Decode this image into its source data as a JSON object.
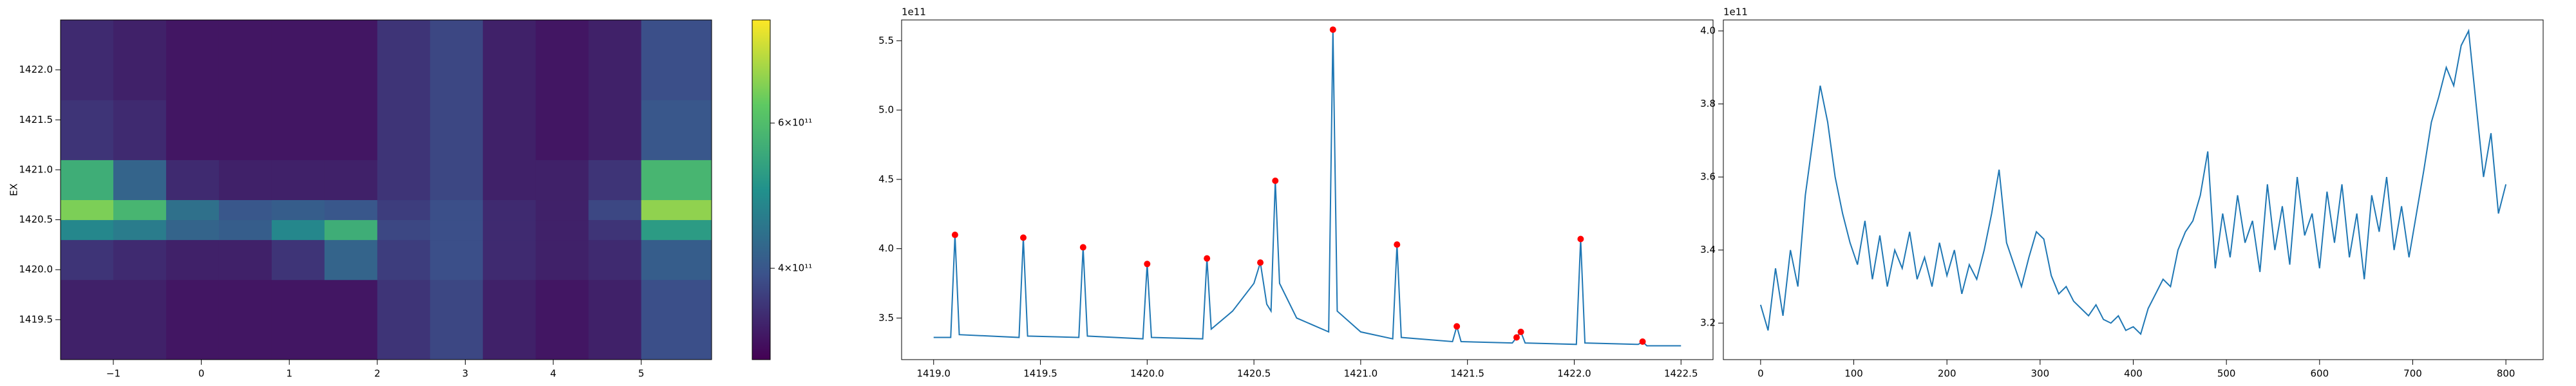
{
  "chart_data": [
    {
      "type": "heatmap",
      "ylabel": "EX",
      "xbins": [
        -1.6,
        -1,
        -0.4,
        0.2,
        0.8,
        1.4,
        2.0,
        2.6,
        3.2,
        3.8,
        4.4,
        5.0,
        5.8
      ],
      "ybins": [
        1419.1,
        1419.5,
        1419.9,
        1420.3,
        1420.5,
        1420.7,
        1421.1,
        1421.7,
        1422.5
      ],
      "z": [
        [
          340000000000.0,
          340000000000.0,
          330000000000.0,
          330000000000.0,
          330000000000.0,
          330000000000.0,
          360000000000.0,
          380000000000.0,
          340000000000.0,
          330000000000.0,
          340000000000.0,
          390000000000.0
        ],
        [
          340000000000.0,
          340000000000.0,
          330000000000.0,
          330000000000.0,
          330000000000.0,
          330000000000.0,
          360000000000.0,
          380000000000.0,
          340000000000.0,
          330000000000.0,
          340000000000.0,
          390000000000.0
        ],
        [
          360000000000.0,
          350000000000.0,
          340000000000.0,
          340000000000.0,
          360000000000.0,
          420000000000.0,
          370000000000.0,
          390000000000.0,
          350000000000.0,
          340000000000.0,
          350000000000.0,
          410000000000.0
        ],
        [
          480000000000.0,
          460000000000.0,
          420000000000.0,
          410000000000.0,
          480000000000.0,
          560000000000.0,
          380000000000.0,
          390000000000.0,
          350000000000.0,
          340000000000.0,
          360000000000.0,
          520000000000.0
        ],
        [
          660000000000.0,
          580000000000.0,
          440000000000.0,
          400000000000.0,
          410000000000.0,
          400000000000.0,
          370000000000.0,
          390000000000.0,
          350000000000.0,
          340000000000.0,
          380000000000.0,
          680000000000.0
        ],
        [
          560000000000.0,
          420000000000.0,
          350000000000.0,
          340000000000.0,
          340000000000.0,
          340000000000.0,
          360000000000.0,
          380000000000.0,
          340000000000.0,
          340000000000.0,
          360000000000.0,
          580000000000.0
        ],
        [
          360000000000.0,
          350000000000.0,
          330000000000.0,
          330000000000.0,
          330000000000.0,
          330000000000.0,
          360000000000.0,
          380000000000.0,
          340000000000.0,
          330000000000.0,
          340000000000.0,
          400000000000.0
        ],
        [
          350000000000.0,
          340000000000.0,
          330000000000.0,
          330000000000.0,
          330000000000.0,
          330000000000.0,
          360000000000.0,
          380000000000.0,
          340000000000.0,
          330000000000.0,
          340000000000.0,
          390000000000.0
        ]
      ],
      "xlim": [
        -1.6,
        5.8
      ],
      "ylim": [
        1419.1,
        1422.5
      ],
      "xticks": [
        {
          "value": -1,
          "label": "−1"
        },
        0,
        1,
        2,
        3,
        4,
        5
      ],
      "yticks": [
        1419.5,
        {
          "value": 1420,
          "label": "1420.0"
        },
        1420.5,
        {
          "value": 1421,
          "label": "1421.0"
        },
        1421.5,
        {
          "value": 1422,
          "label": "1422.0"
        }
      ],
      "colorbar": {
        "scale": "log",
        "lim": [
          310000000000.0,
          800000000000.0
        ],
        "ticks": [
          {
            "value": 400000000000.0,
            "label": "4×10¹¹"
          },
          {
            "value": 600000000000.0,
            "label": "6×10¹¹"
          }
        ]
      }
    },
    {
      "type": "line",
      "offset_text": "1e11",
      "series": [
        {
          "color": "#1f77b4",
          "x": [
            1419.0,
            1419.08,
            1419.1,
            1419.12,
            1419.4,
            1419.42,
            1419.44,
            1419.68,
            1419.7,
            1419.72,
            1419.98,
            1420.0,
            1420.02,
            1420.26,
            1420.28,
            1420.3,
            1420.4,
            1420.5,
            1420.53,
            1420.56,
            1420.58,
            1420.6,
            1420.62,
            1420.7,
            1420.85,
            1420.87,
            1420.89,
            1421.0,
            1421.15,
            1421.17,
            1421.19,
            1421.43,
            1421.45,
            1421.47,
            1421.71,
            1421.73,
            1421.75,
            1421.77,
            1422.01,
            1422.03,
            1422.05,
            1422.3,
            1422.32,
            1422.34,
            1422.5
          ],
          "values": [
            3.36,
            3.36,
            4.1,
            3.38,
            3.36,
            4.08,
            3.37,
            3.36,
            4.01,
            3.37,
            3.35,
            3.89,
            3.36,
            3.35,
            3.93,
            3.42,
            3.55,
            3.75,
            3.9,
            3.6,
            3.55,
            4.49,
            3.75,
            3.5,
            3.4,
            5.58,
            3.55,
            3.4,
            3.35,
            4.03,
            3.36,
            3.33,
            3.44,
            3.33,
            3.32,
            3.36,
            3.4,
            3.32,
            3.31,
            4.07,
            3.32,
            3.31,
            3.33,
            3.3,
            3.3
          ]
        }
      ],
      "peaks": {
        "color": "#ff0000",
        "x": [
          1419.1,
          1419.42,
          1419.7,
          1420.0,
          1420.28,
          1420.53,
          1420.6,
          1420.87,
          1421.17,
          1421.45,
          1421.73,
          1421.75,
          1422.03,
          1422.32
        ],
        "values": [
          4.1,
          4.08,
          4.01,
          3.89,
          3.93,
          3.9,
          4.49,
          5.58,
          4.03,
          3.44,
          3.36,
          3.4,
          4.07,
          3.33
        ]
      },
      "xlim": [
        1418.85,
        1422.65
      ],
      "ylim": [
        3.2,
        5.65
      ],
      "xticks": [
        {
          "value": 1419,
          "label": "1419.0"
        },
        1419.5,
        {
          "value": 1420,
          "label": "1420.0"
        },
        1420.5,
        {
          "value": 1421,
          "label": "1421.0"
        },
        1421.5,
        {
          "value": 1422,
          "label": "1422.0"
        },
        1422.5
      ],
      "yticks": [
        3.5,
        {
          "value": 4,
          "label": "4.0"
        },
        4.5,
        {
          "value": 5,
          "label": "5.0"
        },
        5.5
      ]
    },
    {
      "type": "line",
      "offset_text": "1e11",
      "series": [
        {
          "color": "#1f77b4",
          "x": [
            0,
            8,
            16,
            24,
            32,
            40,
            48,
            56,
            64,
            72,
            80,
            88,
            96,
            104,
            112,
            120,
            128,
            136,
            144,
            152,
            160,
            168,
            176,
            184,
            192,
            200,
            208,
            216,
            224,
            232,
            240,
            248,
            256,
            264,
            272,
            280,
            288,
            296,
            304,
            312,
            320,
            328,
            336,
            344,
            352,
            360,
            368,
            376,
            384,
            392,
            400,
            408,
            416,
            424,
            432,
            440,
            448,
            456,
            464,
            472,
            480,
            488,
            496,
            504,
            512,
            520,
            528,
            536,
            544,
            552,
            560,
            568,
            576,
            584,
            592,
            600,
            608,
            616,
            624,
            632,
            640,
            648,
            656,
            664,
            672,
            680,
            688,
            696,
            704,
            712,
            720,
            728,
            736,
            744,
            752,
            760,
            768,
            776,
            784,
            792,
            800
          ],
          "values": [
            3.25,
            3.18,
            3.35,
            3.22,
            3.4,
            3.3,
            3.55,
            3.7,
            3.85,
            3.75,
            3.6,
            3.5,
            3.42,
            3.36,
            3.48,
            3.32,
            3.44,
            3.3,
            3.4,
            3.35,
            3.45,
            3.32,
            3.38,
            3.3,
            3.42,
            3.33,
            3.4,
            3.28,
            3.36,
            3.32,
            3.4,
            3.5,
            3.62,
            3.42,
            3.36,
            3.3,
            3.38,
            3.45,
            3.43,
            3.33,
            3.28,
            3.3,
            3.26,
            3.24,
            3.22,
            3.25,
            3.21,
            3.2,
            3.22,
            3.18,
            3.19,
            3.17,
            3.24,
            3.28,
            3.32,
            3.3,
            3.4,
            3.45,
            3.48,
            3.55,
            3.67,
            3.35,
            3.5,
            3.38,
            3.55,
            3.42,
            3.48,
            3.34,
            3.58,
            3.4,
            3.52,
            3.36,
            3.6,
            3.44,
            3.5,
            3.35,
            3.56,
            3.42,
            3.58,
            3.38,
            3.5,
            3.32,
            3.55,
            3.45,
            3.6,
            3.4,
            3.52,
            3.38,
            3.5,
            3.62,
            3.75,
            3.82,
            3.9,
            3.85,
            3.96,
            4.0,
            3.8,
            3.6,
            3.72,
            3.5,
            3.58
          ]
        }
      ],
      "xlim": [
        -40,
        840
      ],
      "ylim": [
        3.1,
        4.03
      ],
      "xticks": [
        0,
        100,
        200,
        300,
        400,
        500,
        600,
        700,
        800
      ],
      "yticks": [
        3.2,
        3.4,
        3.6,
        3.8,
        {
          "value": 4,
          "label": "4.0"
        }
      ]
    }
  ]
}
